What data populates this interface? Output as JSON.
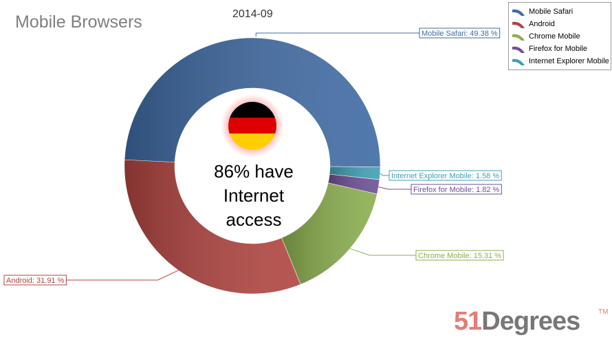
{
  "chart_data": {
    "type": "pie",
    "donut": true,
    "title": "Mobile Browsers",
    "subtitle": "2014-09",
    "center_text": [
      "86% have",
      "Internet",
      "access"
    ],
    "center_image": "germany-flag",
    "legend_position": "top-right",
    "slices": [
      {
        "name": "Internet Explorer Mobile",
        "value": 1.58,
        "label": "Internet Explorer Mobile: 1.58 %",
        "color": "#3f9fb5"
      },
      {
        "name": "Firefox for Mobile",
        "value": 1.82,
        "label": "Firefox for Mobile: 1.82 %",
        "color": "#6e4f95"
      },
      {
        "name": "Chrome Mobile",
        "value": 15.31,
        "label": "Chrome Mobile: 15.31 %",
        "color": "#8aae4e"
      },
      {
        "name": "Android",
        "value": 31.91,
        "label": "Android: 31.91 %",
        "color": "#b04440"
      },
      {
        "name": "Mobile Safari",
        "value": 49.38,
        "label": "Mobile Safari: 49.38 %",
        "color": "#3f6aa3"
      }
    ],
    "legend_order": [
      4,
      3,
      2,
      1,
      0
    ]
  },
  "brand": {
    "logo_a": "51",
    "logo_b": "Degrees",
    "tm": "TM"
  }
}
